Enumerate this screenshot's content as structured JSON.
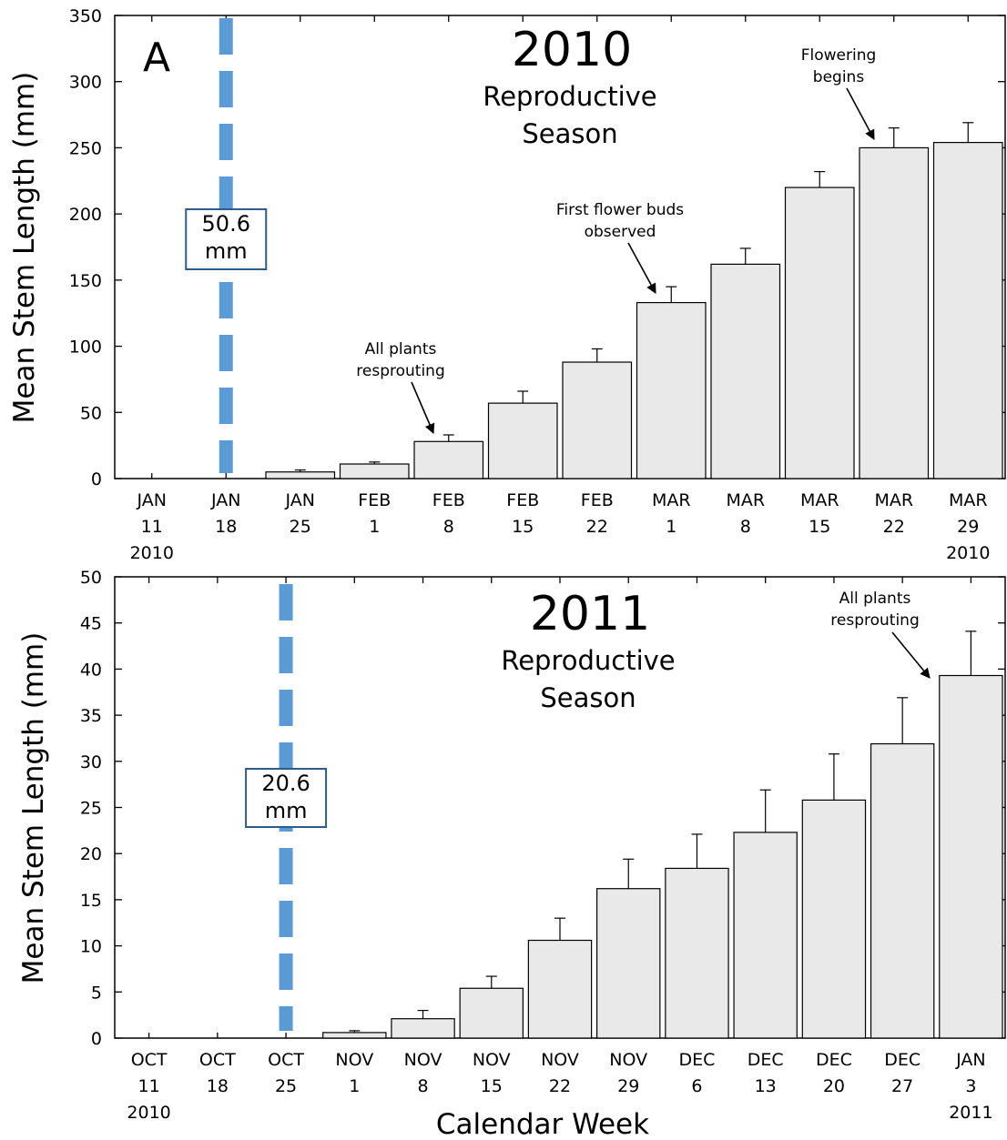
{
  "chart_data": [
    {
      "type": "bar",
      "panel_label": "A",
      "title": "2010",
      "subtitle": [
        "Reproductive",
        "Season"
      ],
      "ylabel": "Mean Stem Length (mm)",
      "ylim": [
        0,
        350
      ],
      "yticks": [
        0,
        50,
        100,
        150,
        200,
        250,
        300,
        350
      ],
      "categories": [
        [
          "JAN",
          "11",
          "2010"
        ],
        [
          "JAN",
          "18"
        ],
        [
          "JAN",
          "25"
        ],
        [
          "FEB",
          "1"
        ],
        [
          "FEB",
          "8"
        ],
        [
          "FEB",
          "15"
        ],
        [
          "FEB",
          "22"
        ],
        [
          "MAR",
          "1"
        ],
        [
          "MAR",
          "8"
        ],
        [
          "MAR",
          "15"
        ],
        [
          "MAR",
          "22"
        ],
        [
          "MAR",
          "29",
          "2010"
        ]
      ],
      "values": [
        0,
        0,
        5,
        11,
        28,
        57,
        88,
        133,
        162,
        220,
        250,
        254
      ],
      "errors": [
        0,
        0,
        1.5,
        1.5,
        5,
        9,
        10,
        12,
        12,
        12,
        15,
        15
      ],
      "marker": {
        "category_index": 1,
        "label": [
          "50.6",
          "mm"
        ],
        "color": "#5b9bd5"
      },
      "annotations": [
        {
          "lines": [
            "All plants",
            "resprouting"
          ],
          "category_index": 4
        },
        {
          "lines": [
            "First flower buds",
            "observed"
          ],
          "category_index": 7
        },
        {
          "lines": [
            "Flowering",
            "begins"
          ],
          "category_index": 10
        }
      ]
    },
    {
      "type": "bar",
      "title": "2011",
      "subtitle": [
        "Reproductive",
        "Season"
      ],
      "ylabel": "Mean Stem Length (mm)",
      "xlabel": "Calendar Week",
      "ylim": [
        0,
        50
      ],
      "yticks": [
        0,
        5,
        10,
        15,
        20,
        25,
        30,
        35,
        40,
        45,
        50
      ],
      "categories": [
        [
          "OCT",
          "11",
          "2010"
        ],
        [
          "OCT",
          "18"
        ],
        [
          "OCT",
          "25"
        ],
        [
          "NOV",
          "1"
        ],
        [
          "NOV",
          "8"
        ],
        [
          "NOV",
          "15"
        ],
        [
          "NOV",
          "22"
        ],
        [
          "NOV",
          "29"
        ],
        [
          "DEC",
          "6"
        ],
        [
          "DEC",
          "13"
        ],
        [
          "DEC",
          "20"
        ],
        [
          "DEC",
          "27"
        ],
        [
          "JAN",
          "3",
          "2011"
        ]
      ],
      "values": [
        0,
        0,
        0,
        0.6,
        2.1,
        5.4,
        10.6,
        16.2,
        18.4,
        22.3,
        25.8,
        31.9,
        39.3
      ],
      "errors": [
        0,
        0,
        0,
        0.2,
        0.9,
        1.3,
        2.4,
        3.2,
        3.7,
        4.6,
        5.0,
        5.0,
        4.8
      ],
      "marker": {
        "category_index": 2,
        "label": [
          "20.6",
          "mm"
        ],
        "color": "#5b9bd5"
      },
      "annotations": [
        {
          "lines": [
            "All plants",
            "resprouting"
          ],
          "category_index": 12
        }
      ]
    }
  ]
}
